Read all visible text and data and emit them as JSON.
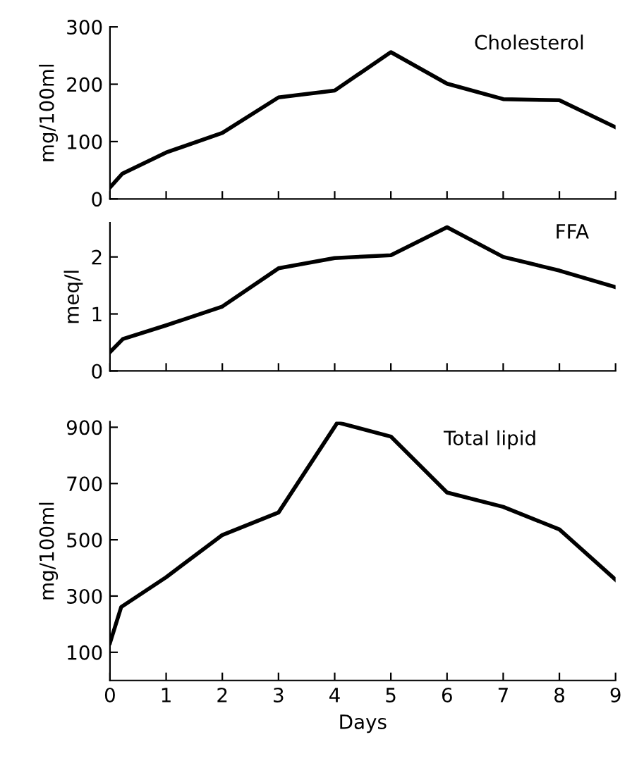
{
  "chart_data": [
    {
      "type": "line",
      "ylabel": "mg/100ml",
      "xlim": [
        0,
        9
      ],
      "xticks": [
        0,
        1,
        2,
        3,
        4,
        5,
        6,
        7,
        8,
        9
      ],
      "ylim": [
        0,
        300
      ],
      "yticks": [
        0,
        100,
        200,
        300
      ],
      "tick_labels": "y",
      "grid": false,
      "legend": false,
      "series": [
        {
          "name": "Cholesterol",
          "color": "#000000",
          "x": [
            0,
            0.22,
            1,
            2,
            3,
            4,
            5,
            6,
            7,
            8,
            9
          ],
          "values": [
            20,
            44,
            81,
            115,
            177,
            189,
            256,
            201,
            174,
            172,
            125
          ]
        }
      ]
    },
    {
      "type": "line",
      "ylabel": "meq/l",
      "xlim": [
        0,
        9
      ],
      "xticks": [
        0,
        1,
        2,
        3,
        4,
        5,
        6,
        7,
        8,
        9
      ],
      "ylim": [
        0,
        2.6
      ],
      "yticks": [
        0,
        1,
        2
      ],
      "tick_labels": "y",
      "grid": false,
      "legend": false,
      "series": [
        {
          "name": "FFA",
          "color": "#000000",
          "x": [
            0,
            0.23,
            1,
            2,
            3,
            4,
            5,
            6,
            7,
            8,
            9
          ],
          "values": [
            0.33,
            0.56,
            0.8,
            1.13,
            1.8,
            1.98,
            2.03,
            2.52,
            2.0,
            1.76,
            1.47
          ]
        }
      ]
    },
    {
      "type": "line",
      "xlabel": "Days",
      "ylabel": "mg/100ml",
      "xlim": [
        0,
        9
      ],
      "xticks": [
        0,
        1,
        2,
        3,
        4,
        5,
        6,
        7,
        8,
        9
      ],
      "ylim": [
        0,
        920
      ],
      "yticks": [
        100,
        300,
        500,
        700,
        900
      ],
      "grid": false,
      "legend": false,
      "series": [
        {
          "name": "Total lipid",
          "color": "#000000",
          "x": [
            0,
            0.2,
            1,
            2,
            3,
            4.05,
            5,
            6,
            7,
            8,
            9
          ],
          "values": [
            133,
            261,
            367,
            517,
            597,
            917,
            867,
            668,
            617,
            537,
            358
          ]
        }
      ]
    }
  ]
}
